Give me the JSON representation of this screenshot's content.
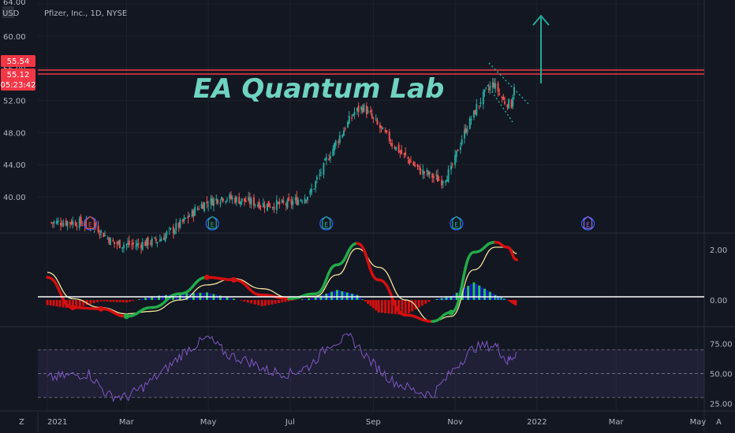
{
  "header": {
    "legend": "Pfizer, Inc., 1D, NYSE",
    "currency": "USD"
  },
  "watermark": "EA Quantum Lab",
  "price_badges": {
    "upper": "55.54",
    "last": "55.12",
    "countdown": "05:23:42"
  },
  "bottom_bar": {
    "left_icon": "Z",
    "right_icon": "A"
  },
  "colors": {
    "background": "#131722",
    "up_candle": "#26a69a",
    "down_candle": "#ef5350",
    "resistance_line": "#f23645",
    "arrow": "#22ab94",
    "macd_green": "#22ab4a",
    "macd_red": "#d40f0f",
    "signal": "#f3e29a",
    "hist_blue": "#1515d6",
    "hist_green": "#22c55e",
    "rsi_line": "#7e57c2",
    "earnings_green": "#22ab94",
    "earnings_red": "#ef5350",
    "earnings_purple": "#9c6ade"
  },
  "chart_data": [
    {
      "type": "candlestick",
      "title": "Pfizer, Inc., 1D, NYSE",
      "ylabel": "USD",
      "x_ticks": [
        "2021",
        "Mar",
        "May",
        "Jul",
        "Sep",
        "Nov",
        "2022",
        "Mar",
        "May"
      ],
      "y_ticks": [
        "64.00",
        "60.00",
        "56.00",
        "52.00",
        "48.00",
        "44.00",
        "40.00"
      ],
      "ylim": [
        35.5,
        64.5
      ],
      "price_lines": [
        55.54,
        55.12
      ],
      "series": [
        {
          "name": "close",
          "x": [
            "2021-01-04",
            "2021-01-20",
            "2021-02-05",
            "2021-02-20",
            "2021-03-08",
            "2021-03-25",
            "2021-04-10",
            "2021-04-26",
            "2021-05-12",
            "2021-05-28",
            "2021-06-14",
            "2021-06-30",
            "2021-07-16",
            "2021-08-02",
            "2021-08-18",
            "2021-08-25",
            "2021-09-05",
            "2021-09-20",
            "2021-10-06",
            "2021-10-22",
            "2021-10-29",
            "2021-11-08",
            "2021-11-22",
            "2021-11-30",
            "2021-12-07",
            "2021-12-13",
            "2021-12-17"
          ],
          "values": [
            36.8,
            36.9,
            36.5,
            34.2,
            34.0,
            34.6,
            36.5,
            39.0,
            40.0,
            39.5,
            39.0,
            39.1,
            40.3,
            46.0,
            50.5,
            51.2,
            48.8,
            45.8,
            43.3,
            42.0,
            43.2,
            48.0,
            52.5,
            54.2,
            52.0,
            51.5,
            55.12
          ]
        }
      ],
      "earnings_markers": [
        {
          "date": "2021-02-02",
          "label": "E",
          "kind": "negative"
        },
        {
          "date": "2021-05-04",
          "label": "E",
          "kind": "positive"
        },
        {
          "date": "2021-07-28",
          "label": "E",
          "kind": "positive"
        },
        {
          "date": "2021-11-02",
          "label": "E",
          "kind": "positive"
        },
        {
          "date": "2022-02-08",
          "label": "E",
          "kind": "upcoming"
        }
      ]
    },
    {
      "type": "line",
      "title": "",
      "y_ticks": [
        "2.00",
        "0.00"
      ],
      "ylim": [
        -1.0,
        2.6
      ],
      "x": [
        "2021-01-01",
        "2021-01-20",
        "2021-02-10",
        "2021-03-01",
        "2021-03-20",
        "2021-04-10",
        "2021-04-30",
        "2021-05-20",
        "2021-06-10",
        "2021-06-30",
        "2021-07-20",
        "2021-08-05",
        "2021-08-20",
        "2021-09-05",
        "2021-09-25",
        "2021-10-15",
        "2021-10-29",
        "2021-11-15",
        "2021-12-01",
        "2021-12-10",
        "2021-12-17"
      ],
      "series": [
        {
          "name": "",
          "values": [
            0.9,
            -0.3,
            -0.35,
            -0.65,
            -0.3,
            0.25,
            0.9,
            0.8,
            0.2,
            0.05,
            0.25,
            1.4,
            2.25,
            0.8,
            -0.6,
            -0.85,
            -0.5,
            1.9,
            2.3,
            2.1,
            1.6
          ]
        },
        {
          "name": "",
          "values": [
            1.1,
            0.05,
            -0.3,
            -0.55,
            -0.45,
            0.0,
            0.6,
            0.85,
            0.45,
            0.1,
            0.15,
            1.0,
            2.05,
            1.3,
            0.0,
            -0.85,
            -0.65,
            1.2,
            2.1,
            2.1,
            1.85
          ]
        }
      ],
      "histogram": [
        -0.2,
        -0.35,
        -0.05,
        -0.1,
        0.15,
        0.25,
        0.3,
        0.05,
        -0.25,
        -0.05,
        0.1,
        0.4,
        0.2,
        -0.5,
        -0.6,
        0.0,
        0.15,
        0.7,
        0.2,
        0.0,
        -0.25
      ]
    },
    {
      "type": "line",
      "title": "",
      "y_ticks": [
        "75.00",
        "50.00",
        "25.00"
      ],
      "ylim": [
        20,
        88
      ],
      "x": [
        "2021-01-01",
        "2021-01-15",
        "2021-02-01",
        "2021-02-15",
        "2021-03-01",
        "2021-03-15",
        "2021-04-01",
        "2021-04-15",
        "2021-05-01",
        "2021-05-15",
        "2021-06-01",
        "2021-06-15",
        "2021-07-01",
        "2021-07-15",
        "2021-08-01",
        "2021-08-15",
        "2021-09-01",
        "2021-09-15",
        "2021-10-01",
        "2021-10-15",
        "2021-11-01",
        "2021-11-15",
        "2021-12-01",
        "2021-12-10",
        "2021-12-17"
      ],
      "series": [
        {
          "name": "",
          "values": [
            46,
            48,
            50,
            32,
            30,
            40,
            55,
            70,
            80,
            66,
            60,
            52,
            50,
            56,
            76,
            80,
            58,
            44,
            36,
            32,
            55,
            72,
            74,
            60,
            68
          ]
        }
      ],
      "bands": [
        30,
        50,
        70
      ]
    }
  ]
}
